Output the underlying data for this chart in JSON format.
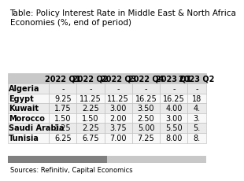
{
  "title": "Table: Policy Interest Rate in Middle East & North Africa\nEconomies (%, end of period)",
  "col_headers": [
    "",
    "2022 Q1",
    "2022 Q2",
    "2022 Q3",
    "2022 Q4",
    "2023 Q1",
    "2023 Q2"
  ],
  "rows": [
    [
      "Algeria",
      "-",
      "-",
      "-",
      "-",
      "-",
      "-"
    ],
    [
      "Egypt",
      "9.25",
      "11.25",
      "11.25",
      "16.25",
      "16.25",
      "18"
    ],
    [
      "Kuwait",
      "1.75",
      "2.25",
      "3.00",
      "3.50",
      "4.00",
      "4."
    ],
    [
      "Morocco",
      "1.50",
      "1.50",
      "2.00",
      "2.50",
      "3.00",
      "3."
    ],
    [
      "Saudi Arabia",
      "1.25",
      "2.25",
      "3.75",
      "5.00",
      "5.50",
      "5."
    ],
    [
      "Tunisia",
      "6.25",
      "6.75",
      "7.00",
      "7.25",
      "8.00",
      "8."
    ]
  ],
  "row_bg_even": "#eaeaea",
  "row_bg_odd": "#f8f8f8",
  "header_row_bg": "#c8c8c8",
  "text_color": "#000000",
  "source_text": "Sources: Refinitiv, Capital Economics",
  "footer_bar_color1": "#808080",
  "footer_bar_color2": "#c8c8c8",
  "title_fontsize": 7.5,
  "cell_fontsize": 7.0,
  "header_fontsize": 7.0
}
